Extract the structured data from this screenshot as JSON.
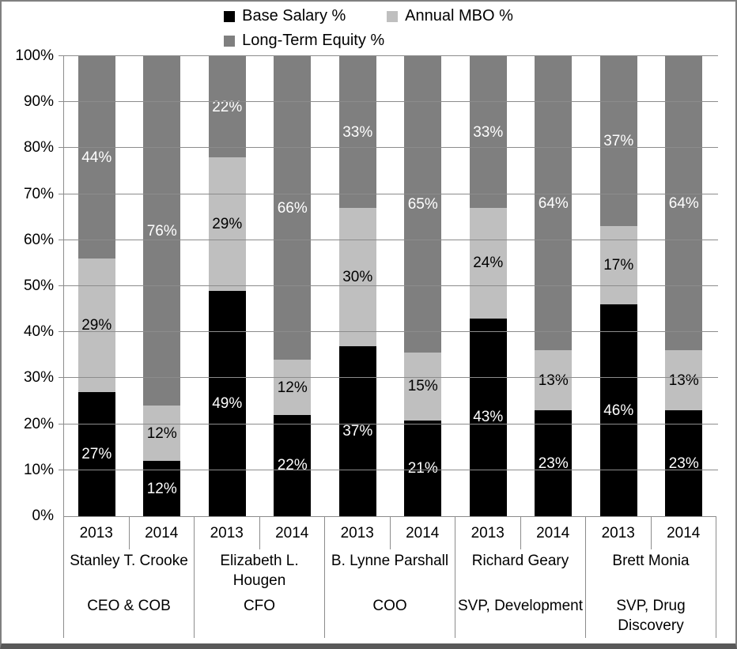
{
  "chart_data": {
    "type": "bar",
    "stacked": true,
    "orientation": "vertical",
    "title": "",
    "xlabel": "",
    "ylabel": "",
    "value_suffix": "%",
    "ylim": [
      0,
      100
    ],
    "ytick_step": 10,
    "ytick_labels": [
      "0%",
      "10%",
      "20%",
      "30%",
      "40%",
      "50%",
      "60%",
      "70%",
      "80%",
      "90%",
      "100%"
    ],
    "grid": true,
    "legend_position": "top-center",
    "categories": [
      "2013",
      "2014",
      "2013",
      "2014",
      "2013",
      "2014",
      "2013",
      "2014",
      "2013",
      "2014"
    ],
    "group_labels": [
      {
        "person": "Stanley T. Crooke",
        "role": "CEO & COB"
      },
      {
        "person": "Elizabeth L. Hougen",
        "role": "CFO"
      },
      {
        "person": "B. Lynne Parshall",
        "role": "COO"
      },
      {
        "person": "Richard Geary",
        "role": "SVP, Development"
      },
      {
        "person": "Brett Monia",
        "role": "SVP, Drug Discovery"
      }
    ],
    "series": [
      {
        "name": "Base Salary %",
        "color": "#000000",
        "label_color": "#ffffff",
        "values": [
          27,
          12,
          49,
          22,
          37,
          21,
          43,
          23,
          46,
          23
        ]
      },
      {
        "name": "Annual MBO %",
        "color": "#bfbfbf",
        "label_color": "#000000",
        "values": [
          29,
          12,
          29,
          12,
          30,
          15,
          24,
          13,
          17,
          13
        ]
      },
      {
        "name": "Long-Term Equity %",
        "color": "#7f7f7f",
        "label_color": "#ffffff",
        "values": [
          44,
          76,
          22,
          66,
          33,
          65,
          33,
          64,
          37,
          64
        ]
      }
    ]
  },
  "colors": {
    "gridline": "#8c8c8c",
    "frame_side": "#808080",
    "frame_bottom": "#595959",
    "background": "#ffffff"
  }
}
